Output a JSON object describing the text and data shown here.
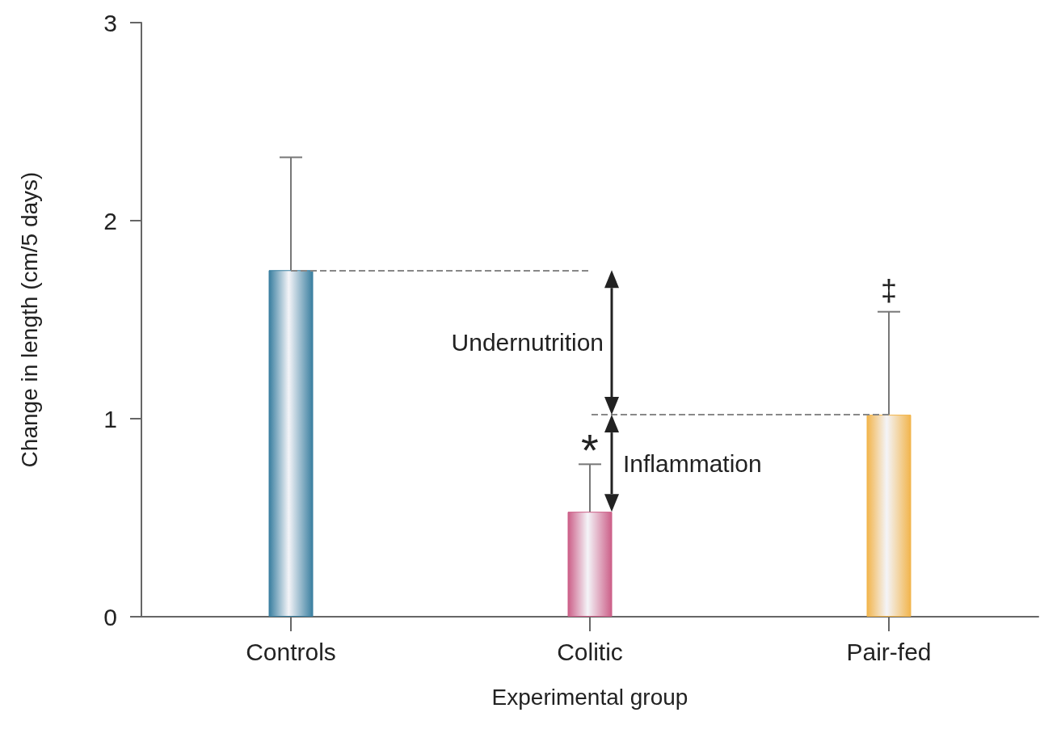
{
  "chart_data": {
    "type": "bar",
    "xlabel": "Experimental group",
    "ylabel": "Change in length (cm/5 days)",
    "categories": [
      "Controls",
      "Colitic",
      "Pair-fed"
    ],
    "values": [
      1.75,
      0.53,
      1.02
    ],
    "errors": [
      0.57,
      0.24,
      0.52
    ],
    "colors": [
      "#3a7fa0",
      "#cc5f88",
      "#f2b54c"
    ],
    "ylim": [
      0,
      3
    ],
    "yticks": [
      0,
      1,
      2,
      3
    ],
    "grid": false,
    "ref_lines": [
      {
        "axis": "y",
        "value": 1.75,
        "color": "#888888",
        "line_style": "dashed"
      },
      {
        "axis": "y",
        "value": 1.02,
        "color": "#888888",
        "line_style": "dashed"
      }
    ],
    "annotations": [
      "Undernutrition",
      "Inflammation",
      "*",
      "‡"
    ]
  }
}
